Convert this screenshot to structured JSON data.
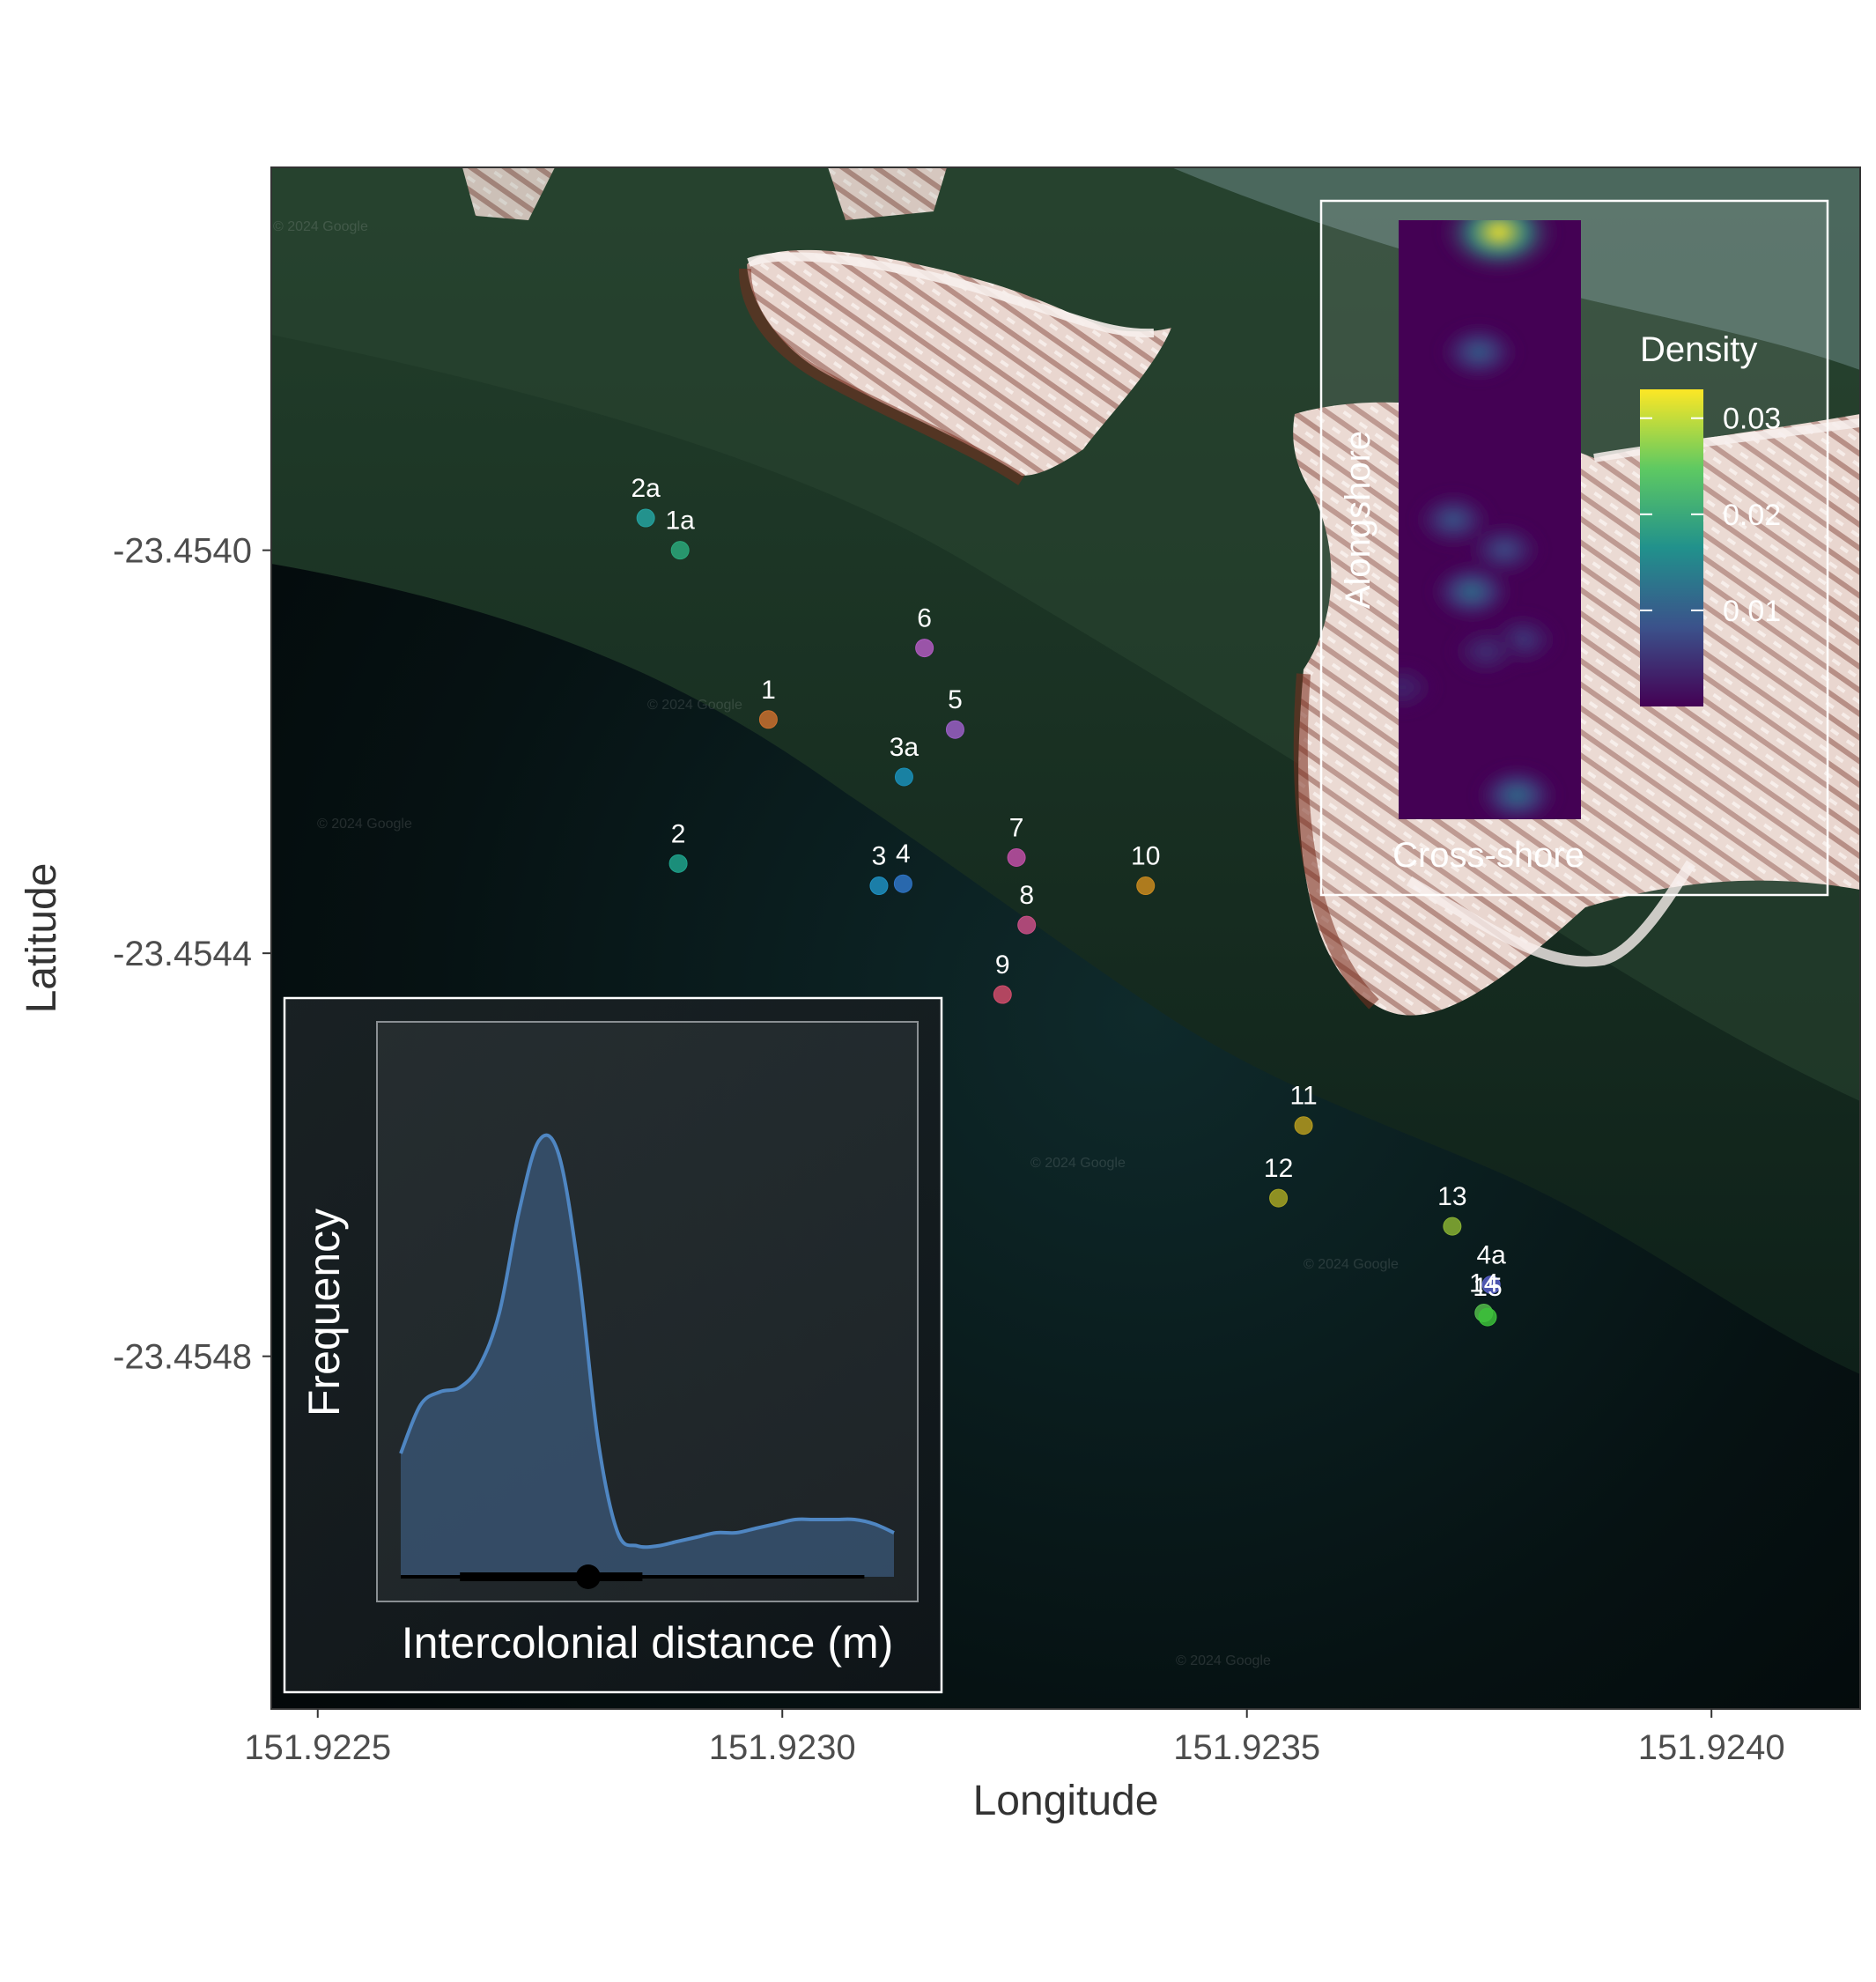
{
  "map_panel": {
    "x_title": "Longitude",
    "y_title": "Latitude",
    "satellite_watermark": "© 2024 Google",
    "colors": {
      "water_dark": "#050b0c",
      "water_mid": "#0f2a2b",
      "reef_green": "#1f3b28",
      "sand": "#e8d3cc",
      "sand_edge": "#7a2e1e"
    }
  },
  "chart_data": [
    {
      "type": "scatter",
      "title": "",
      "xlabel": "Longitude",
      "ylabel": "Latitude",
      "xlim": [
        151.92245,
        151.92416
      ],
      "ylim": [
        -23.45515,
        -23.45362
      ],
      "x_ticks": [
        151.9225,
        151.923,
        151.9235,
        151.924
      ],
      "x_tick_labels": [
        "151.9225",
        "151.9230",
        "151.9235",
        "151.9240"
      ],
      "y_ticks": [
        -23.454,
        -23.4544,
        -23.4548
      ],
      "y_tick_labels": [
        "-23.4540",
        "-23.4544",
        "-23.4548"
      ],
      "grid": false,
      "points": [
        {
          "label": "2a",
          "x": 151.922853,
          "y": -23.453968,
          "color": "#25a2a0"
        },
        {
          "label": "1a",
          "x": 151.92289,
          "y": -23.454,
          "color": "#2aa77a"
        },
        {
          "label": "6",
          "x": 151.923153,
          "y": -23.454097,
          "color": "#b05ac0"
        },
        {
          "label": "1",
          "x": 151.922985,
          "y": -23.454168,
          "color": "#c96f2e"
        },
        {
          "label": "5",
          "x": 151.923186,
          "y": -23.454178,
          "color": "#9a5ec6"
        },
        {
          "label": "3a",
          "x": 151.923131,
          "y": -23.454225,
          "color": "#1a8fb8"
        },
        {
          "label": "2",
          "x": 151.922888,
          "y": -23.454311,
          "color": "#1fa38c"
        },
        {
          "label": "7",
          "x": 151.923252,
          "y": -23.454305,
          "color": "#c04fa6"
        },
        {
          "label": "3",
          "x": 151.923104,
          "y": -23.454333,
          "color": "#1f8fc0"
        },
        {
          "label": "4",
          "x": 151.92313,
          "y": -23.454331,
          "color": "#2f74c6"
        },
        {
          "label": "10",
          "x": 151.923391,
          "y": -23.454333,
          "color": "#c98a1e"
        },
        {
          "label": "8",
          "x": 151.923263,
          "y": -23.454372,
          "color": "#c94f86"
        },
        {
          "label": "9",
          "x": 151.923237,
          "y": -23.454441,
          "color": "#d04c6b"
        },
        {
          "label": "11",
          "x": 151.923561,
          "y": -23.454571,
          "color": "#b59a1e"
        },
        {
          "label": "12",
          "x": 151.923534,
          "y": -23.454643,
          "color": "#a6a323"
        },
        {
          "label": "13",
          "x": 151.923721,
          "y": -23.454671,
          "color": "#88b033"
        },
        {
          "label": "4a",
          "x": 151.923763,
          "y": -23.454729,
          "color": "#5960c8"
        },
        {
          "label": "14",
          "x": 151.923755,
          "y": -23.454757,
          "color": "#52b84a"
        },
        {
          "label": "15",
          "x": 151.923759,
          "y": -23.454761,
          "color": "#3cc03a"
        }
      ]
    },
    {
      "type": "heatmap",
      "title": "",
      "xlabel": "Cross-shore",
      "ylabel": "Alongshore",
      "legend_title": "Density",
      "legend_placement": "right",
      "color_scale": "viridis",
      "legend_min": 0.0,
      "legend_max": 0.033,
      "legend_ticks": [
        0.01,
        0.02,
        0.03
      ],
      "legend_tick_labels": [
        "0.01",
        "0.02",
        "0.03"
      ],
      "hotspots": [
        {
          "x": 0.55,
          "y": 0.02,
          "peak": 0.033
        },
        {
          "x": 0.44,
          "y": 0.22,
          "peak": 0.01
        },
        {
          "x": 0.3,
          "y": 0.5,
          "peak": 0.009
        },
        {
          "x": 0.4,
          "y": 0.62,
          "peak": 0.012
        },
        {
          "x": 0.58,
          "y": 0.55,
          "peak": 0.008
        },
        {
          "x": 0.68,
          "y": 0.7,
          "peak": 0.006
        },
        {
          "x": 0.48,
          "y": 0.72,
          "peak": 0.005
        },
        {
          "x": 0.65,
          "y": 0.96,
          "peak": 0.012
        },
        {
          "x": 0.02,
          "y": 0.78,
          "peak": 0.004
        }
      ]
    },
    {
      "type": "area",
      "title": "",
      "xlabel": "Intercolonial distance (m)",
      "ylabel": "Frequency",
      "fill_color": "#3b587a",
      "line_color": "#4f86c2",
      "x": [
        0,
        0.04,
        0.08,
        0.12,
        0.16,
        0.2,
        0.24,
        0.28,
        0.32,
        0.36,
        0.4,
        0.44,
        0.48,
        0.52,
        0.56,
        0.6,
        0.64,
        0.68,
        0.72,
        0.76,
        0.8,
        0.84,
        0.88,
        0.92,
        0.96,
        1.0
      ],
      "values": [
        0.28,
        0.39,
        0.42,
        0.43,
        0.48,
        0.6,
        0.83,
        0.99,
        0.96,
        0.7,
        0.31,
        0.1,
        0.07,
        0.07,
        0.08,
        0.09,
        0.1,
        0.1,
        0.11,
        0.12,
        0.13,
        0.13,
        0.13,
        0.13,
        0.12,
        0.1
      ],
      "ylim": [
        0,
        1.05
      ],
      "summary": {
        "median": 0.38,
        "iqr": [
          0.12,
          0.49
        ],
        "range": [
          0.0,
          0.94
        ]
      }
    }
  ]
}
